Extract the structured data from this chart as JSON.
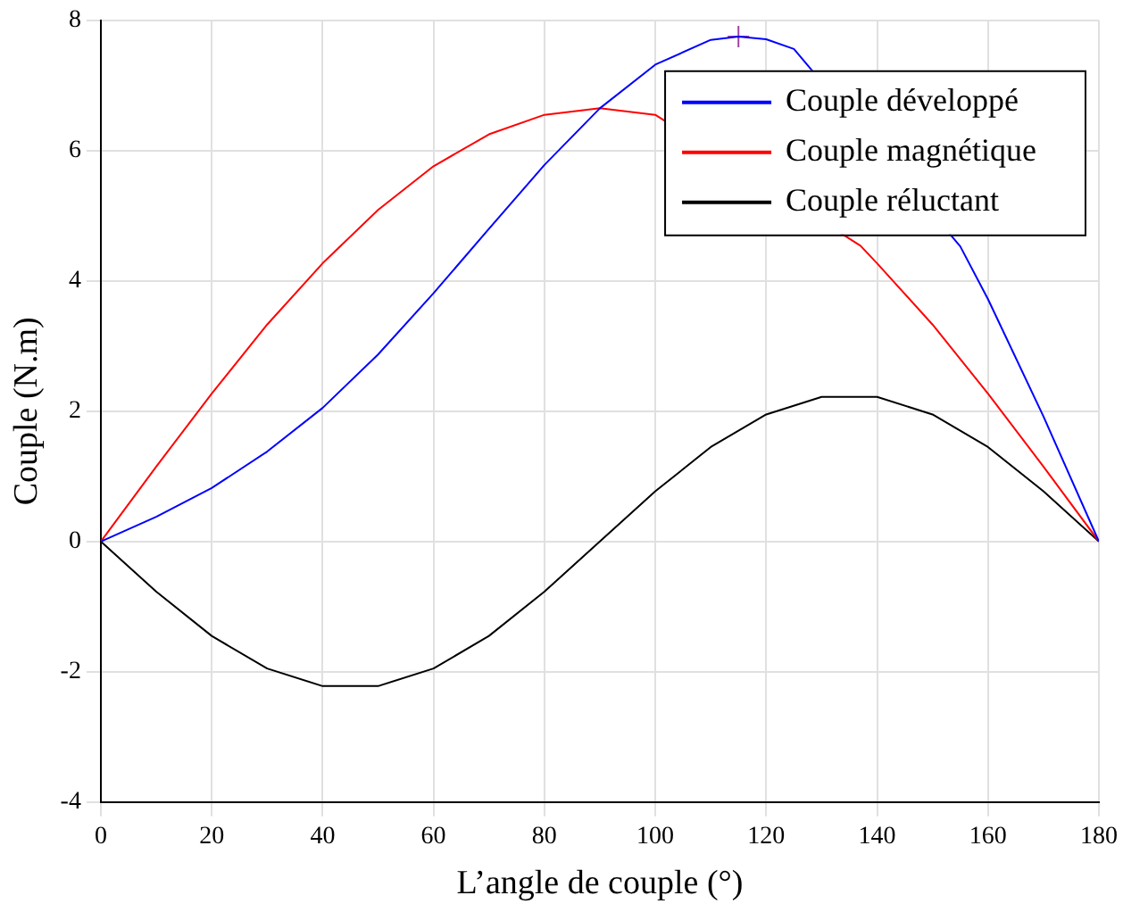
{
  "chart_data": {
    "type": "line",
    "xlabel": "L’angle de couple (°)",
    "ylabel": "Couple (N.m)",
    "x": [
      0,
      10,
      20,
      30,
      40,
      50,
      60,
      70,
      80,
      90,
      100,
      110,
      120,
      130,
      140,
      150,
      160,
      170,
      180
    ],
    "xlim": [
      0,
      180
    ],
    "xticks": [
      0,
      20,
      40,
      60,
      80,
      100,
      120,
      140,
      160,
      180
    ],
    "ylim": [
      -4,
      8
    ],
    "yticks": [
      -4,
      -2,
      0,
      2,
      4,
      6,
      8
    ],
    "grid": true,
    "legend": "top right",
    "marker": "none",
    "line_style": "solid",
    "series": [
      {
        "name": "Couple développé",
        "color": "#0000ff",
        "x": [
          0,
          10,
          20,
          30,
          40,
          50,
          60,
          70,
          80,
          90,
          100,
          110,
          115,
          120,
          125,
          130,
          140,
          150,
          155,
          160,
          170,
          180
        ],
        "values": [
          0,
          0.38,
          0.82,
          1.38,
          2.05,
          2.87,
          3.81,
          4.8,
          5.78,
          6.65,
          7.32,
          7.7,
          7.75,
          7.71,
          7.56,
          null,
          null,
          null,
          4.53,
          3.72,
          1.92,
          0
        ]
      },
      {
        "name": "Couple magnétique",
        "color": "#ff0000",
        "x": [
          0,
          10,
          20,
          30,
          40,
          50,
          60,
          70,
          80,
          90,
          100,
          110,
          120,
          130,
          137,
          140,
          150,
          160,
          170,
          180
        ],
        "values": [
          0,
          1.15,
          2.27,
          3.33,
          4.27,
          5.09,
          5.76,
          6.25,
          6.55,
          6.65,
          6.55,
          null,
          null,
          null,
          4.54,
          4.27,
          3.33,
          2.27,
          1.15,
          0
        ]
      },
      {
        "name": "Couple réluctant",
        "color": "#000000",
        "values": [
          0,
          -0.77,
          -1.45,
          -1.95,
          -2.22,
          -2.22,
          -1.95,
          -1.45,
          -0.77,
          0,
          0.77,
          1.45,
          1.95,
          2.22,
          2.22,
          1.95,
          1.45,
          0.77,
          0
        ]
      },
      {
        "type": "scatter",
        "marker": "cross",
        "color": "#a040a0",
        "x": [
          115
        ],
        "values": [
          7.75
        ]
      }
    ]
  }
}
